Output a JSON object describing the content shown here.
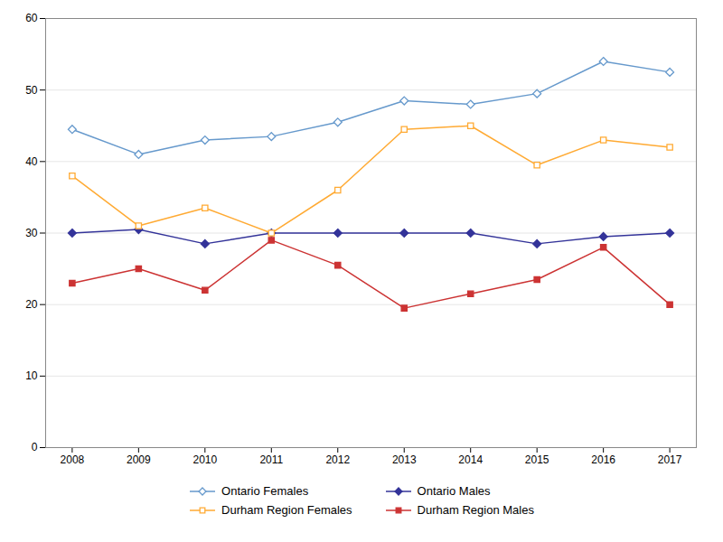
{
  "chart_data": {
    "type": "line",
    "x": [
      2008,
      2009,
      2010,
      2011,
      2012,
      2013,
      2014,
      2015,
      2016,
      2017
    ],
    "series": [
      {
        "name": "Ontario Females",
        "color": "#6699CC",
        "marker": "diamond_open",
        "values": [
          44.5,
          41.0,
          43.0,
          43.5,
          45.5,
          48.5,
          48.0,
          49.5,
          54.0,
          52.5
        ]
      },
      {
        "name": "Ontario Males",
        "color": "#333399",
        "marker": "diamond",
        "values": [
          30.0,
          30.5,
          28.5,
          30.0,
          30.0,
          30.0,
          30.0,
          28.5,
          29.5,
          30.0
        ]
      },
      {
        "name": "Durham Region Females",
        "color": "#FFAA33",
        "marker": "square_open",
        "values": [
          38.0,
          31.0,
          33.5,
          30.0,
          36.0,
          44.5,
          45.0,
          39.5,
          43.0,
          42.0
        ]
      },
      {
        "name": "Durham Region Males",
        "color": "#CC3333",
        "marker": "square",
        "values": [
          23.0,
          25.0,
          22.0,
          29.0,
          25.5,
          19.5,
          21.5,
          23.5,
          28.0,
          20.0
        ]
      }
    ],
    "xlim": [
      2007.6,
      2017.4
    ],
    "xticks": [
      2008,
      2009,
      2010,
      2011,
      2012,
      2013,
      2014,
      2015,
      2016,
      2017
    ],
    "ylim": [
      0,
      60
    ],
    "yticks": [
      0,
      10,
      20,
      30,
      40,
      50,
      60
    ],
    "grid": true,
    "legend": "bottom"
  }
}
